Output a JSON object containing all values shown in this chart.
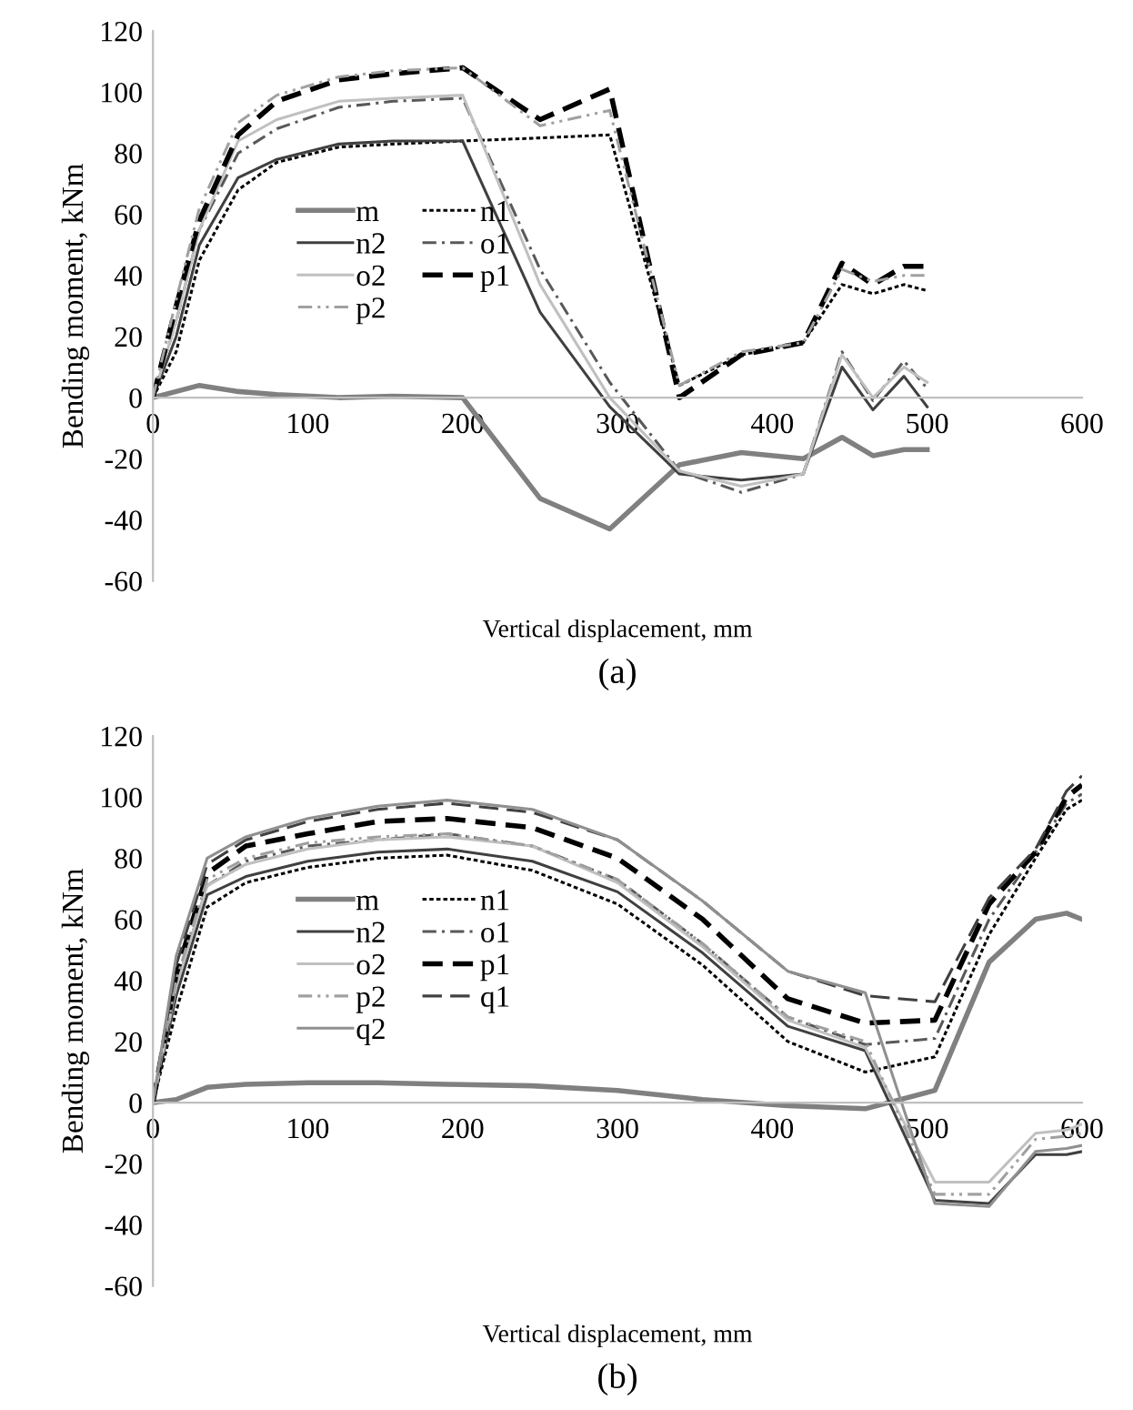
{
  "chart_data": [
    {
      "type": "line",
      "xlabel": "Vertical displacement, mm",
      "ylabel": "Bending moment, kNm",
      "annotations": [
        "(a)"
      ],
      "xlim": [
        0,
        600
      ],
      "ylim": [
        -60,
        120
      ],
      "xticks": [
        0,
        100,
        200,
        300,
        400,
        500,
        600
      ],
      "yticks": [
        -60,
        -40,
        -20,
        0,
        20,
        40,
        60,
        80,
        100,
        120
      ],
      "grid": false,
      "legend": "left",
      "marker": "none",
      "x": [
        0,
        15,
        30,
        55,
        80,
        120,
        155,
        200,
        250,
        295,
        340,
        380,
        420,
        445,
        465,
        485,
        500
      ],
      "series": [
        {
          "name": "m",
          "color": "#808080",
          "line_style": "solid",
          "values": [
            0,
            2,
            4,
            2,
            1,
            0,
            0.5,
            0,
            -33,
            -43,
            -22,
            -18,
            -20,
            -13,
            -19,
            -17,
            -17
          ]
        },
        {
          "name": "n1",
          "color": "#000000",
          "line_style": "dotted",
          "values": [
            0,
            15,
            45,
            68,
            77,
            82,
            83,
            84,
            85,
            86,
            4,
            14,
            18,
            37,
            34,
            37,
            35
          ]
        },
        {
          "name": "n2",
          "color": "#404040",
          "line_style": "solid",
          "values": [
            0,
            20,
            50,
            72,
            78,
            83,
            84,
            84,
            28,
            -3,
            -25,
            -27,
            -25,
            10,
            -4,
            7,
            -3
          ]
        },
        {
          "name": "o1",
          "color": "#595959",
          "line_style": "dashdot",
          "values": [
            0,
            25,
            55,
            80,
            88,
            95,
            97,
            98,
            42,
            5,
            -24,
            -31,
            -25,
            15,
            -1,
            12,
            3
          ]
        },
        {
          "name": "o2",
          "color": "#c0c0c0",
          "line_style": "solid",
          "values": [
            0,
            25,
            55,
            84,
            91,
            97,
            98,
            99,
            37,
            0,
            -24,
            -29,
            -25,
            14,
            0,
            10,
            5
          ]
        },
        {
          "name": "p1",
          "color": "#000000",
          "line_style": "dashed",
          "values": [
            0,
            30,
            58,
            86,
            97,
            104,
            106,
            108,
            91,
            101,
            0,
            14,
            18,
            44,
            37,
            43,
            43
          ]
        },
        {
          "name": "p2",
          "color": "#a0a0a0",
          "line_style": "dashdotdot",
          "values": [
            0,
            32,
            62,
            90,
            99,
            105,
            107,
            108,
            89,
            94,
            4,
            15,
            18,
            42,
            38,
            40,
            40
          ]
        }
      ]
    },
    {
      "type": "line",
      "xlabel": "Vertical displacement, mm",
      "ylabel": "Bending moment, kNm",
      "annotations": [
        "(b)"
      ],
      "xlim": [
        0,
        600
      ],
      "ylim": [
        -60,
        120
      ],
      "xticks": [
        0,
        100,
        200,
        300,
        400,
        500,
        600
      ],
      "yticks": [
        -60,
        -40,
        -20,
        0,
        20,
        40,
        60,
        80,
        100,
        120
      ],
      "grid": false,
      "legend": "left",
      "marker": "none",
      "x": [
        0,
        15,
        35,
        60,
        100,
        145,
        190,
        245,
        300,
        355,
        410,
        460,
        505,
        540,
        570,
        590,
        600
      ],
      "series": [
        {
          "name": "m",
          "color": "#808080",
          "line_style": "solid",
          "values": [
            0,
            1,
            5,
            6,
            6.5,
            6.5,
            6,
            5.5,
            4,
            1,
            -1,
            -2,
            4,
            46,
            60,
            62,
            60
          ]
        },
        {
          "name": "n1",
          "color": "#000000",
          "line_style": "dotted",
          "values": [
            0,
            30,
            64,
            72,
            77,
            80,
            81,
            76,
            65,
            45,
            20,
            10,
            15,
            55,
            80,
            96,
            99
          ]
        },
        {
          "name": "n2",
          "color": "#404040",
          "line_style": "solid",
          "values": [
            0,
            35,
            68,
            74,
            79,
            82,
            83,
            79,
            69,
            49,
            25,
            17,
            -32,
            -33,
            -17,
            -17,
            -16
          ]
        },
        {
          "name": "o1",
          "color": "#595959",
          "line_style": "dashdot",
          "values": [
            0,
            38,
            71,
            79,
            84,
            86,
            88,
            84,
            73,
            52,
            28,
            19,
            21,
            60,
            82,
            98,
            101
          ]
        },
        {
          "name": "o2",
          "color": "#c0c0c0",
          "line_style": "solid",
          "values": [
            0,
            38,
            71,
            78,
            83,
            86,
            87,
            84,
            72,
            51,
            27,
            18,
            -26,
            -26,
            -10,
            -9,
            -7
          ]
        },
        {
          "name": "p1",
          "color": "#000000",
          "line_style": "dashed",
          "values": [
            0,
            42,
            75,
            84,
            88,
            92,
            93,
            90,
            80,
            60,
            34,
            26,
            27,
            65,
            82,
            100,
            104
          ]
        },
        {
          "name": "p2",
          "color": "#a0a0a0",
          "line_style": "dashdotdot",
          "values": [
            0,
            40,
            73,
            80,
            85,
            87,
            88,
            84,
            73,
            52,
            28,
            20,
            -30,
            -30,
            -12,
            -11,
            -10
          ]
        },
        {
          "name": "q1",
          "color": "#404040",
          "line_style": "longdash",
          "values": [
            0,
            45,
            78,
            86,
            92,
            96,
            98,
            95,
            86,
            66,
            43,
            35,
            33,
            67,
            83,
            102,
            107
          ]
        },
        {
          "name": "q2",
          "color": "#909090",
          "line_style": "solid",
          "values": [
            0,
            48,
            80,
            87,
            93,
            97,
            99,
            96,
            86,
            66,
            43,
            36,
            -33,
            -34,
            -16,
            -15,
            -14
          ]
        }
      ]
    }
  ]
}
